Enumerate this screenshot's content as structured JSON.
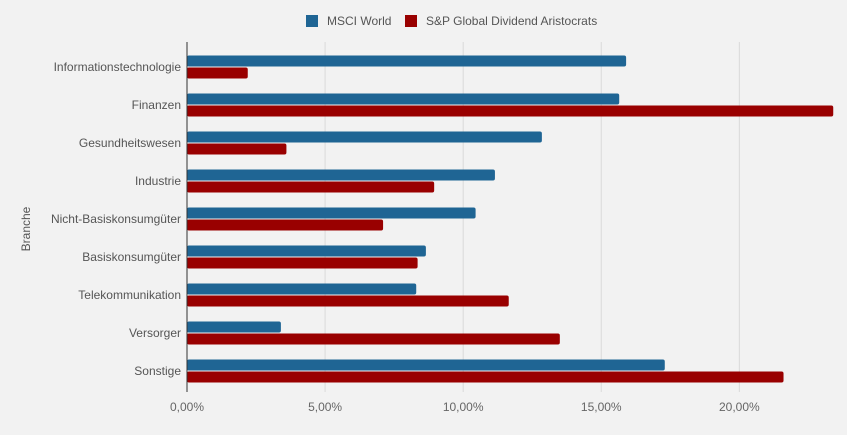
{
  "chart_data": {
    "type": "bar",
    "orientation": "horizontal",
    "title": "",
    "xlabel": "",
    "ylabel": "Branche",
    "categories": [
      "Informationstechnologie",
      "Finanzen",
      "Gesundheitswesen",
      "Industrie",
      "Nicht-Basiskonsumgüter",
      "Basiskonsumgüter",
      "Telekommunikation",
      "Versorger",
      "Sonstige"
    ],
    "series": [
      {
        "name": "MSCI World",
        "color": "#1f6594",
        "values": [
          15.9,
          15.65,
          12.85,
          11.15,
          10.45,
          8.65,
          8.3,
          3.4,
          17.3
        ]
      },
      {
        "name": "S&P Global Dividend Aristocrats",
        "color": "#990000",
        "values": [
          2.2,
          23.4,
          3.6,
          8.95,
          7.1,
          8.35,
          11.65,
          13.5,
          21.6
        ]
      }
    ],
    "xlim": [
      0,
      23.5
    ],
    "xticks": [
      0,
      5,
      10,
      15,
      20
    ],
    "xtick_labels": [
      "0,00%",
      "5,00%",
      "10,00%",
      "15,00%",
      "20,00%"
    ],
    "grid": true,
    "legend_position": "top-center"
  }
}
